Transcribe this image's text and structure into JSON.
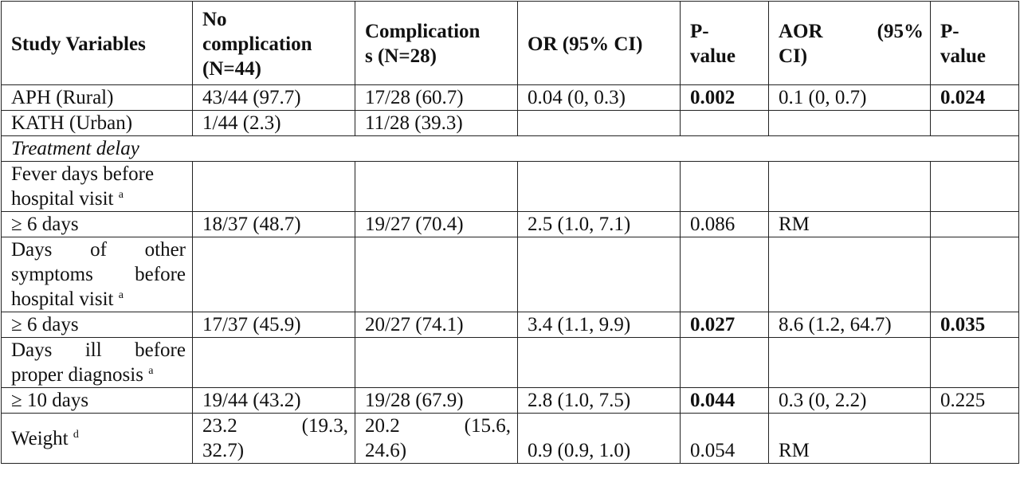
{
  "headers": {
    "col1": "Study Variables",
    "col2_l1": "No",
    "col2_l2": "complication",
    "col2_l3": "(N=44)",
    "col3_l1": "Complication",
    "col3_l2": "s (N=28)",
    "col4": "OR (95% CI)",
    "col5_l1": "P-",
    "col5_l2": "value",
    "col6_a": "AOR",
    "col6_b": "(95%",
    "col6_c": "CI)",
    "col7_l1": "P-",
    "col7_l2": "value"
  },
  "rows": {
    "aph": {
      "label": "APH (Rural)",
      "nocomp": "43/44 (97.7)",
      "comp": "17/28 (60.7)",
      "or": "0.04 (0, 0.3)",
      "p": "0.002",
      "aor": "0.1 (0, 0.7)",
      "ap": "0.024"
    },
    "kath": {
      "label": "KATH (Urban)",
      "nocomp": "1/44 (2.3)",
      "comp": "11/28 (39.3)"
    },
    "delay": {
      "label": "Treatment delay"
    },
    "fever": {
      "label_l1": "Fever days before",
      "label_l2": "hospital visit",
      "sup": "a"
    },
    "fever6": {
      "label": "≥ 6 days",
      "nocomp": "18/37 (48.7)",
      "comp": "19/27 (70.4)",
      "or": "2.5 (1.0, 7.1)",
      "p": "0.086",
      "aor": "RM"
    },
    "other": {
      "label_w1": "Days",
      "label_w2": "of",
      "label_w3": "other",
      "label_w4": "symptoms",
      "label_w5": "before",
      "label_l3": "hospital visit",
      "sup": "a"
    },
    "other6": {
      "label": "≥ 6 days",
      "nocomp": "17/37 (45.9)",
      "comp": "20/27 (74.1)",
      "or": "3.4 (1.1, 9.9)",
      "p": "0.027",
      "aor": "8.6 (1.2, 64.7)",
      "ap": "0.035"
    },
    "ill": {
      "label_w1": "Days",
      "label_w2": "ill",
      "label_w3": "before",
      "label_l2": "proper diagnosis",
      "sup": "a"
    },
    "ill10": {
      "label": "≥ 10 days",
      "nocomp": "19/44 (43.2)",
      "comp": "19/28 (67.9)",
      "or": "2.8 (1.0, 7.5)",
      "p": "0.044",
      "aor": "0.3 (0, 2.2)",
      "ap": "0.225"
    },
    "weight": {
      "label": "Weight",
      "sup": "d",
      "nocomp_a": "23.2",
      "nocomp_b": "(19.3,",
      "nocomp_c": "32.7)",
      "comp_a": "20.2",
      "comp_b": "(15.6,",
      "comp_c": "24.6)",
      "or": "0.9 (0.9, 1.0)",
      "p": "0.054",
      "aor": "RM"
    }
  }
}
